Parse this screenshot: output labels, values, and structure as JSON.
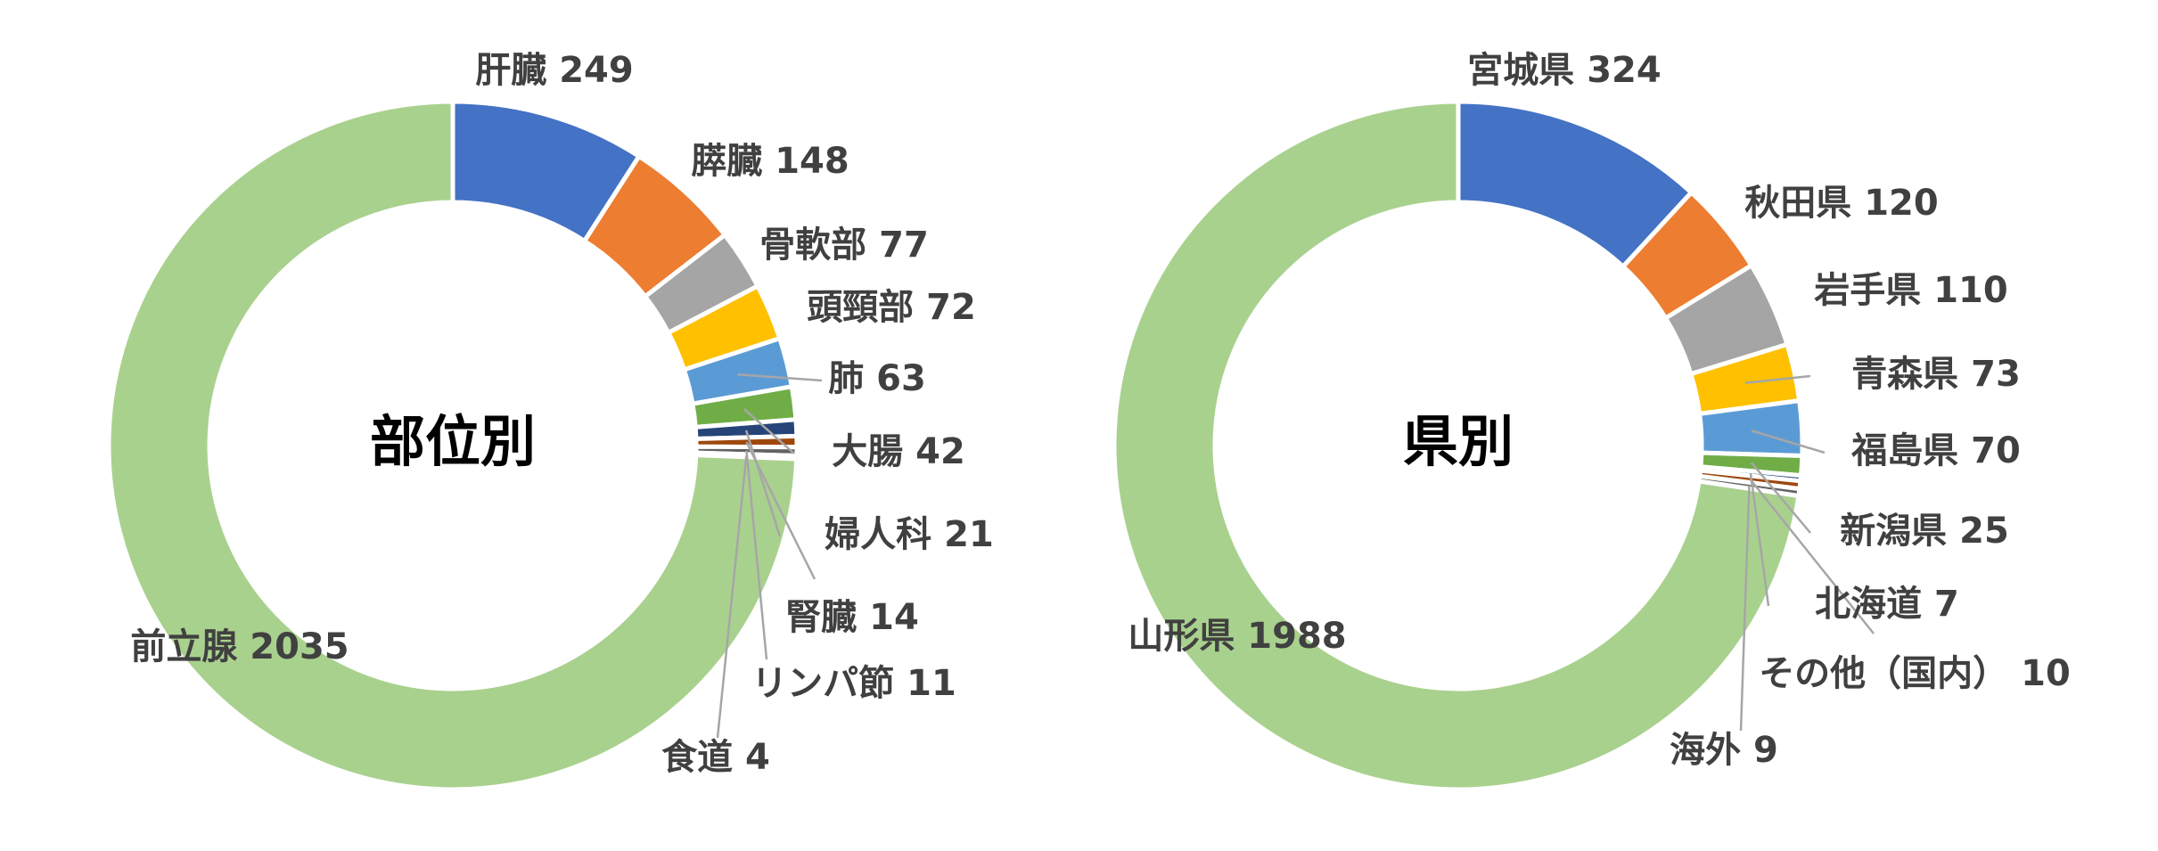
{
  "chart_data": [
    {
      "type": "donut",
      "title": "部位別",
      "categories": [
        "肝臓",
        "膵臓",
        "骨軟部",
        "頭頸部",
        "肺",
        "大腸",
        "婦人科",
        "腎臓",
        "リンパ節",
        "食道",
        "前立腺"
      ],
      "values": [
        249,
        148,
        77,
        72,
        63,
        42,
        21,
        14,
        11,
        4,
        2035
      ],
      "colors": [
        "#4472c4",
        "#ed7d31",
        "#a5a5a5",
        "#ffc000",
        "#5b9bd5",
        "#70ad47",
        "#264478",
        "#9e480e",
        "#636363",
        "#997300",
        "#a9d18e"
      ]
    },
    {
      "type": "donut",
      "title": "県別",
      "categories": [
        "宮城県",
        "秋田県",
        "岩手県",
        "青森県",
        "福島県",
        "新潟県",
        "北海道",
        "その他（国内）",
        "海外",
        "山形県"
      ],
      "values": [
        324,
        120,
        110,
        73,
        70,
        25,
        7,
        10,
        9,
        1988
      ],
      "colors": [
        "#4472c4",
        "#ed7d31",
        "#a5a5a5",
        "#ffc000",
        "#5b9bd5",
        "#70ad47",
        "#264478",
        "#9e480e",
        "#636363",
        "#a9d18e"
      ]
    }
  ]
}
